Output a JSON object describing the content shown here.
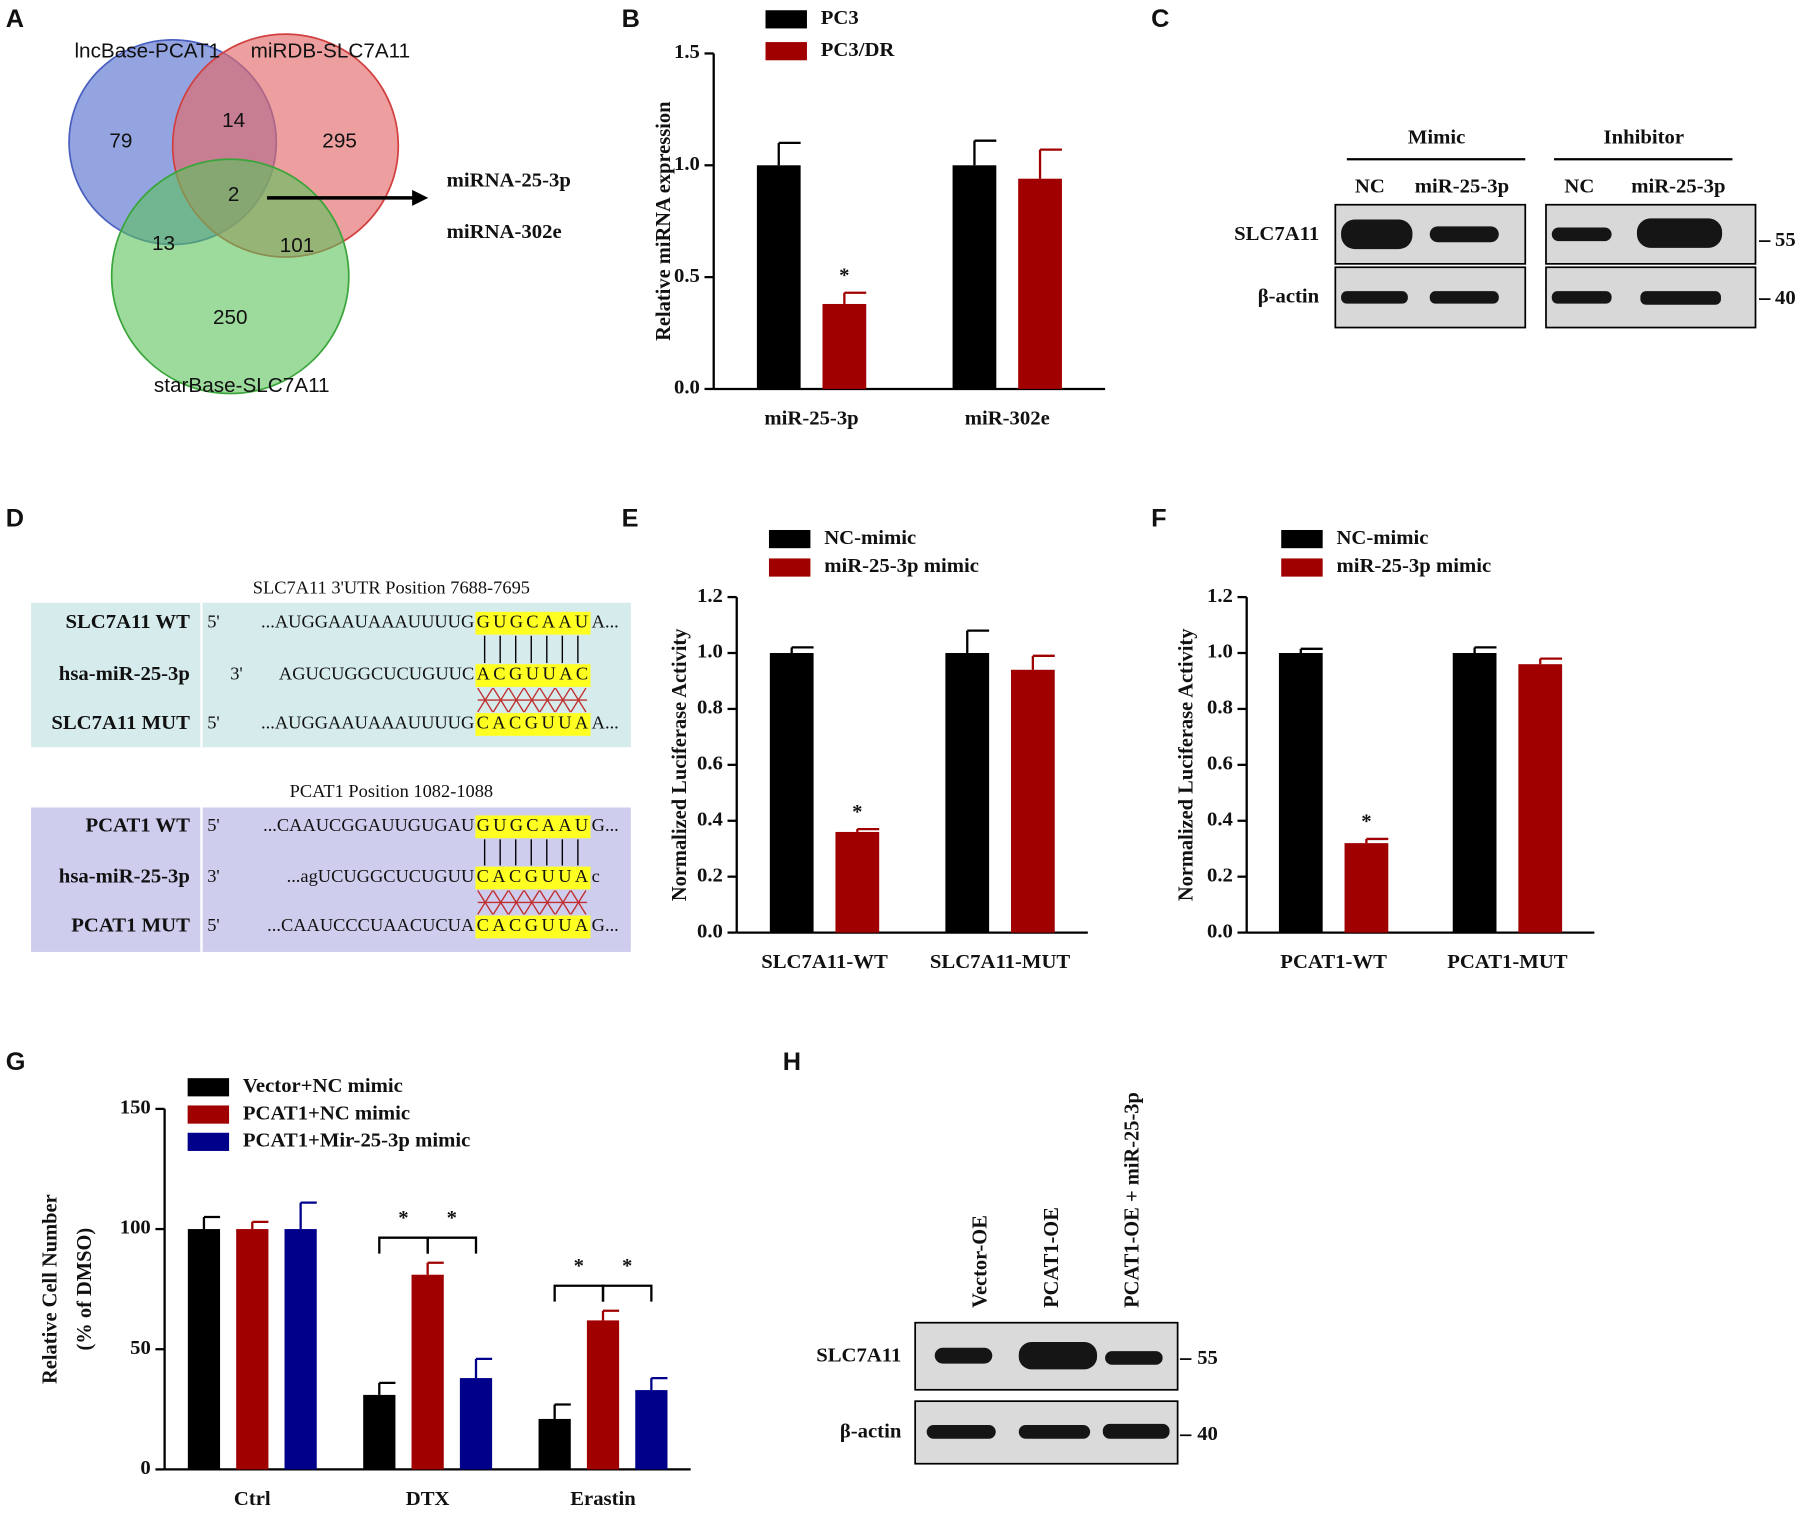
{
  "panels": [
    "A",
    "B",
    "C",
    "D",
    "E",
    "F",
    "G",
    "H"
  ],
  "venn": {
    "sets": [
      "lncBase-PCAT1",
      "miRDB-SLC7A11",
      "starBase-SLC7A11"
    ],
    "regions": [
      79,
      14,
      295,
      2,
      13,
      101,
      250
    ],
    "result": [
      "miRNA-25-3p",
      "miRNA-302e"
    ]
  },
  "blot_c": {
    "groups": [
      "Mimic",
      "Inhibitor"
    ],
    "lanes": [
      "NC",
      "miR-25-3p",
      "NC",
      "miR-25-3p"
    ],
    "rows": [
      "SLC7A11",
      "β-actin"
    ],
    "markers": [
      55,
      40
    ]
  },
  "sequences": [
    {
      "title": "SLC7A11 3'UTR Position 7688-7695",
      "rows": [
        {
          "label": "SLC7A11 WT",
          "end": "5'",
          "before": "...AUGGAAUAAAUUUUG",
          "site": "GUGCAAU",
          "after": "A..."
        },
        {
          "label": "hsa-miR-25-3p",
          "end": "3'",
          "before": "AGUCUGGCUCUGUUC",
          "site": "ACGUUAC"
        },
        {
          "label": "SLC7A11 MUT",
          "end": "5'",
          "before": "...AUGGAAUAAAUUUUG",
          "site": "CACGUUA",
          "after": "A..."
        }
      ]
    },
    {
      "title": "PCAT1 Position 1082-1088",
      "rows": [
        {
          "label": "PCAT1 WT",
          "end": "5'",
          "before": "...CAAUCGGAUUGUGAU",
          "site": "GUGCAAU",
          "after": "G..."
        },
        {
          "label": "hsa-miR-25-3p",
          "end": "3'",
          "before": "...agUCUGGCUCUGUU",
          "site": "CACGUUA",
          "after": "c"
        },
        {
          "label": "PCAT1 MUT",
          "end": "5'",
          "before": "...CAAUCCCUAACUCUA",
          "site": "CACGUUA",
          "after": "G..."
        }
      ]
    }
  ],
  "blot_h": {
    "lanes": [
      "Vector-OE",
      "PCAT1-OE",
      "PCAT1-OE + miR-25-3p"
    ],
    "rows": [
      "SLC7A11",
      "β-actin"
    ],
    "markers": [
      55,
      40
    ]
  },
  "chart_data": [
    {
      "type": "bar",
      "y_label": [
        "Relative miRNA expression"
      ],
      "categories": [
        "miR-25-3p",
        "miR-302e"
      ],
      "series": [
        {
          "name": "PC3",
          "color": "#000000",
          "values": [
            1.0,
            1.0
          ],
          "errors": [
            0.1,
            0.11
          ]
        },
        {
          "name": "PC3/DR",
          "color": "#a00000",
          "values": [
            0.38,
            0.94
          ],
          "errors": [
            0.05,
            0.13
          ],
          "significance": [
            "*",
            null
          ]
        }
      ],
      "ylim": [
        0,
        1.5
      ],
      "yticks": [
        {
          "value": 0,
          "label": "0.0"
        },
        {
          "value": 0.5,
          "label": "0.5"
        },
        {
          "value": 1,
          "label": "1.0"
        },
        {
          "value": 1.5,
          "label": "1.5"
        }
      ]
    },
    {
      "type": "bar",
      "y_label": [
        "Normalized Luciferase Activity"
      ],
      "categories": [
        "SLC7A11-WT",
        "SLC7A11-MUT"
      ],
      "series": [
        {
          "name": "NC-mimic",
          "color": "#000000",
          "values": [
            1.0,
            1.0
          ],
          "errors": [
            0.02,
            0.08
          ]
        },
        {
          "name": "miR-25-3p mimic",
          "color": "#a00000",
          "values": [
            0.36,
            0.94
          ],
          "errors": [
            0.01,
            0.05
          ],
          "significance": [
            "*",
            null
          ]
        }
      ],
      "ylim": [
        0,
        1.2
      ],
      "yticks": [
        {
          "value": 0,
          "label": "0.0"
        },
        0.2,
        0.4,
        0.6,
        0.8,
        {
          "value": 1,
          "label": "1.0"
        },
        1.2
      ]
    },
    {
      "type": "bar",
      "y_label": [
        "Normalized Luciferase Activity"
      ],
      "categories": [
        "PCAT1-WT",
        "PCAT1-MUT"
      ],
      "series": [
        {
          "name": "NC-mimic",
          "color": "#000000",
          "values": [
            1.0,
            1.0
          ],
          "errors": [
            0.015,
            0.02
          ]
        },
        {
          "name": "miR-25-3p mimic",
          "color": "#a00000",
          "values": [
            0.32,
            0.96
          ],
          "errors": [
            0.015,
            0.02
          ],
          "significance": [
            "*",
            null
          ]
        }
      ],
      "ylim": [
        0,
        1.2
      ],
      "yticks": [
        {
          "value": 0,
          "label": "0.0"
        },
        0.2,
        0.4,
        0.6,
        0.8,
        {
          "value": 1,
          "label": "1.0"
        },
        1.2
      ]
    },
    {
      "type": "bar",
      "y_label": [
        "Relative Cell Number",
        "(% of DMSO)"
      ],
      "categories": [
        "Ctrl",
        "DTX",
        "Erastin"
      ],
      "series": [
        {
          "name": "Vector+NC mimic",
          "color": "#000000",
          "values": [
            100,
            31,
            21
          ],
          "errors": [
            5,
            5,
            6
          ]
        },
        {
          "name": "PCAT1+NC mimic",
          "color": "#a00000",
          "values": [
            100,
            81,
            62
          ],
          "errors": [
            3,
            5,
            4
          ]
        },
        {
          "name": "PCAT1+Mir-25-3p mimic",
          "color": "#00008b",
          "values": [
            100,
            38,
            33
          ],
          "errors": [
            11,
            8,
            5
          ]
        }
      ],
      "comparisons": [
        {
          "category": 1,
          "from": 0,
          "to": 1,
          "label": "*"
        },
        {
          "category": 1,
          "from": 1,
          "to": 2,
          "label": "*"
        },
        {
          "category": 2,
          "from": 0,
          "to": 1,
          "label": "*"
        },
        {
          "category": 2,
          "from": 1,
          "to": 2,
          "label": "*"
        }
      ],
      "ylim": [
        0,
        150
      ],
      "yticks": [
        0,
        50,
        100,
        150
      ]
    }
  ]
}
